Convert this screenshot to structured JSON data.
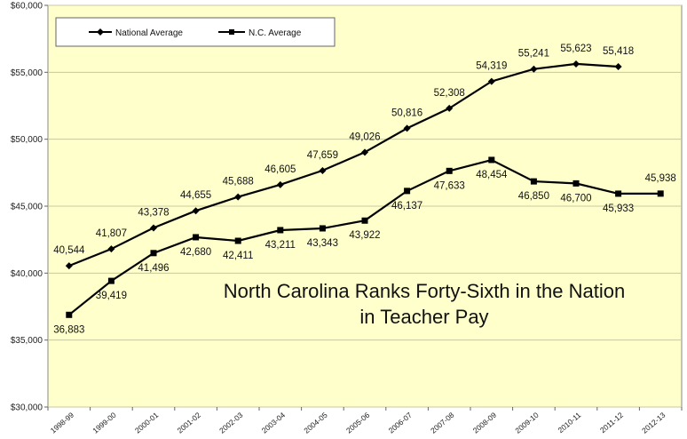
{
  "chart_data": {
    "type": "line",
    "categories": [
      "1998-99",
      "1999-00",
      "2000-01",
      "2001-02",
      "2002-03",
      "2003-04",
      "2004-05",
      "2005-06",
      "2006-07",
      "2007-08",
      "2008-09",
      "2009-10",
      "2010-11",
      "2011-12",
      "2012-13"
    ],
    "ylim": [
      30000,
      60000
    ],
    "yticks": [
      30000,
      35000,
      40000,
      45000,
      50000,
      55000,
      60000
    ],
    "ytick_labels": [
      "$30,000",
      "$35,000",
      "$40,000",
      "$45,000",
      "$50,000",
      "$55,000",
      "$60,000"
    ],
    "grid": "horizontal",
    "legend_position": "top-left",
    "annotation": [
      "North Carolina Ranks Forty-Sixth in the Nation",
      "in Teacher Pay"
    ],
    "series": [
      {
        "name": "National Average",
        "marker": "diamond",
        "values": [
          40544,
          41807,
          43378,
          44655,
          45688,
          46605,
          47659,
          49026,
          50816,
          52308,
          54319,
          55241,
          55623,
          55418,
          null
        ],
        "labels": [
          "40,544",
          "41,807",
          "43,378",
          "44,655",
          "45,688",
          "46,605",
          "47,659",
          "49,026",
          "50,816",
          "52,308",
          "54,319",
          "55,241",
          "55,623",
          "55,418",
          null
        ]
      },
      {
        "name": "N.C. Average",
        "marker": "square",
        "values": [
          36883,
          39419,
          41496,
          42680,
          42411,
          43211,
          43343,
          43922,
          46137,
          47633,
          48454,
          46850,
          46700,
          45933,
          45938
        ],
        "labels": [
          "36,883",
          "39,419",
          "41,496",
          "42,680",
          "42,411",
          "43,211",
          "43,343",
          "43,922",
          "46,137",
          "47,633",
          "48,454",
          "46,850",
          "46,700",
          "45,933",
          "45,938"
        ]
      }
    ]
  },
  "colors": {
    "plot_background": "#ffffcc",
    "line": "#000000",
    "grid": "#c8c8a0"
  }
}
